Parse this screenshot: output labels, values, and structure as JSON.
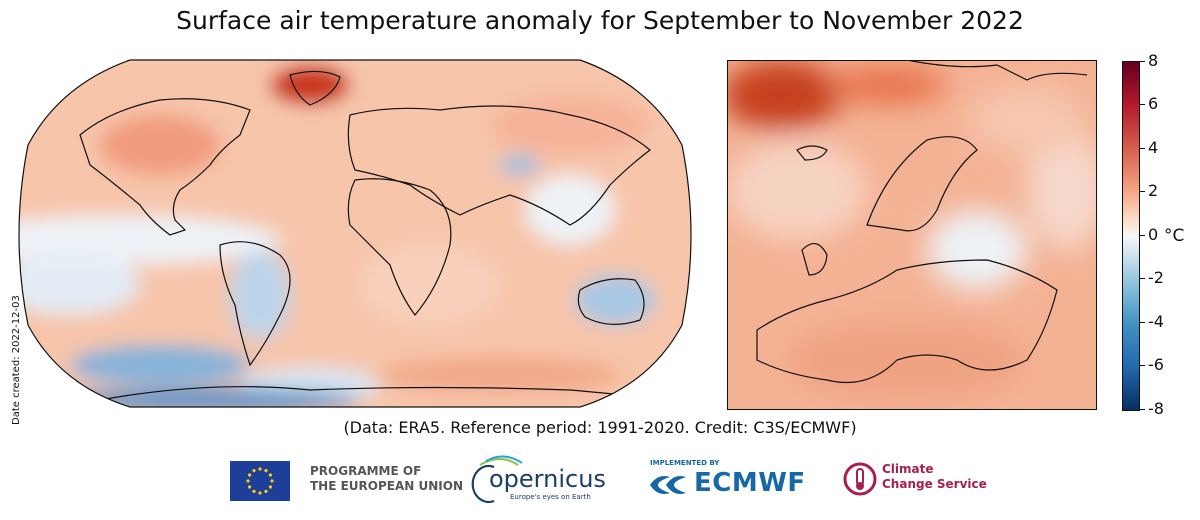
{
  "title": "Surface air temperature anomaly for September to November 2022",
  "date_created": "Date created: 2022-12-03",
  "credit": "(Data: ERA5.  Reference period: 1991-2020.  Credit: C3S/ECMWF)",
  "colorbar": {
    "unit": "°C",
    "ticks": [
      "8",
      "6",
      "4",
      "2",
      "0",
      "-2",
      "-4",
      "-6",
      "-8"
    ],
    "range": [
      -8,
      8
    ],
    "colors": [
      "#67001f",
      "#b2182b",
      "#d6604d",
      "#f4a582",
      "#fddbc7",
      "#f7f7f7",
      "#d1e5f0",
      "#92c5de",
      "#4393c3",
      "#2166ac",
      "#053061"
    ]
  },
  "maps": {
    "world": {
      "projection": "Robinson",
      "description_features": [
        "world coastlines",
        "temperature anomaly field"
      ]
    },
    "europe": {
      "region": "Europe",
      "description_features": [
        "european coastlines",
        "temperature anomaly field"
      ]
    }
  },
  "logos": {
    "eu_line1": "PROGRAMME OF",
    "eu_line2": "THE EUROPEAN UNION",
    "copernicus_word": "opernicus",
    "copernicus_tagline": "Europe's eyes on Earth",
    "ecmwf_implemented": "IMPLEMENTED BY",
    "ecmwf_word": "ECMWF",
    "c3s_line1": "Climate",
    "c3s_line2": "Change Service"
  }
}
